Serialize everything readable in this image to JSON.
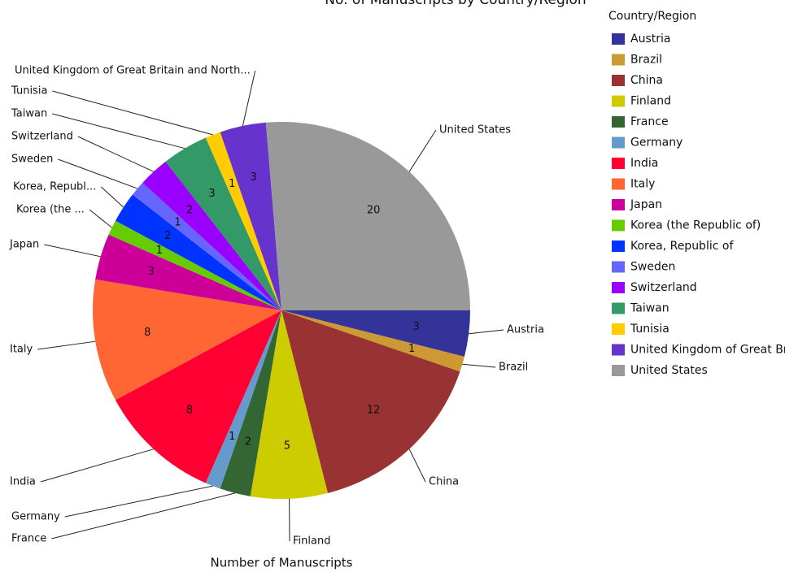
{
  "chart_data": {
    "type": "pie",
    "title": "No. of Manuscripts by Country/Region",
    "axis_label": "Number of Manuscripts",
    "legend_title": "Country/Region",
    "legend_position": "right",
    "categories": [
      "Austria",
      "Brazil",
      "China",
      "Finland",
      "France",
      "Germany",
      "India",
      "Italy",
      "Japan",
      "Korea (the Republic of)",
      "Korea, Republic of",
      "Sweden",
      "Switzerland",
      "Taiwan",
      "Tunisia",
      "United Kingdom of Great Britain and Northern Ireland",
      "United States"
    ],
    "slice_labels": [
      "Austria",
      "Brazil",
      "China",
      "Finland",
      "France",
      "Germany",
      "India",
      "Italy",
      "Japan",
      "Korea (the ...",
      "Korea, Republ...",
      "Sweden",
      "Switzerland",
      "Taiwan",
      "Tunisia",
      "United Kingdom of Great Britain and North...",
      "United States"
    ],
    "values": [
      3,
      1,
      12,
      5,
      2,
      1,
      8,
      8,
      3,
      1,
      2,
      1,
      2,
      3,
      1,
      3,
      20
    ],
    "colors": [
      "#333399",
      "#cc9933",
      "#993333",
      "#cccc00",
      "#336633",
      "#6699cc",
      "#ff0033",
      "#ff6633",
      "#cc0099",
      "#66cc00",
      "#0033ff",
      "#6666ff",
      "#9900ff",
      "#339966",
      "#ffcc00",
      "#6633cc",
      "#999999"
    ]
  }
}
